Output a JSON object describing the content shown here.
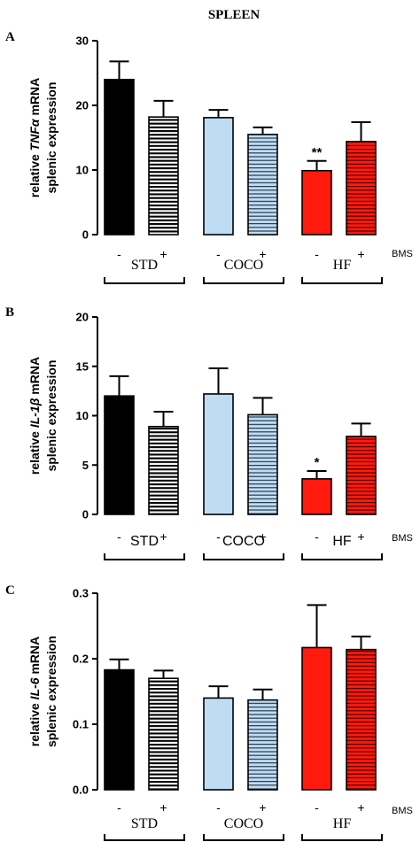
{
  "figure_title": "SPLEEN",
  "colors": {
    "black": "#000000",
    "light_blue": "#bfdcf5",
    "red": "#ff1a0d"
  },
  "chart_data": [
    {
      "type": "bar",
      "panel": "A",
      "ylabel_lines": [
        {
          "parts": [
            {
              "text": "relative "
            },
            {
              "text": "TNFα",
              "italic": true
            },
            {
              "text": " mRNA"
            }
          ]
        },
        {
          "parts": [
            {
              "text": "splenic expression"
            }
          ]
        }
      ],
      "ylim": [
        0,
        30
      ],
      "yticks": [
        "0",
        "10",
        "20",
        "30"
      ],
      "categories": [
        "STD -",
        "STD +",
        "COCO -",
        "COCO +",
        "HF -",
        "HF +"
      ],
      "values": [
        24.0,
        18.2,
        18.1,
        15.5,
        9.9,
        14.4
      ],
      "errors": [
        2.8,
        2.5,
        1.2,
        1.1,
        1.5,
        3.0
      ],
      "bar_styles": [
        "solid-black",
        "striped-black",
        "solid-blue",
        "striped-blue",
        "solid-red",
        "striped-red"
      ],
      "annotations": [
        {
          "bar": 4,
          "text": "**"
        }
      ],
      "bms_labels": [
        "-",
        "+",
        "-",
        "+",
        "-",
        "+"
      ],
      "bms_caption": "BMS",
      "groups": [
        "STD",
        "COCO",
        "HF"
      ]
    },
    {
      "type": "bar",
      "panel": "B",
      "ylabel_lines": [
        {
          "parts": [
            {
              "text": "relative "
            },
            {
              "text": "IL-1β",
              "italic": true
            },
            {
              "text": " mRNA"
            }
          ]
        },
        {
          "parts": [
            {
              "text": "splenic expression"
            }
          ]
        }
      ],
      "ylim": [
        0,
        20
      ],
      "yticks": [
        "0",
        "5",
        "10",
        "15",
        "20"
      ],
      "categories": [
        "STD -",
        "STD +",
        "COCO -",
        "COCO +",
        "HF -",
        "HF +"
      ],
      "values": [
        12.0,
        8.9,
        12.2,
        10.1,
        3.6,
        7.9
      ],
      "errors": [
        2.0,
        1.5,
        2.6,
        1.7,
        0.8,
        1.3
      ],
      "bar_styles": [
        "solid-black",
        "striped-black",
        "solid-blue",
        "striped-blue",
        "solid-red",
        "striped-red"
      ],
      "annotations": [
        {
          "bar": 4,
          "text": "*"
        }
      ],
      "bms_labels": [
        "-",
        "+",
        "-",
        "+",
        "-",
        "+"
      ],
      "bms_caption": "BMS",
      "groups": [
        "STD",
        "COCO",
        "HF"
      ]
    },
    {
      "type": "bar",
      "panel": "C",
      "ylabel_lines": [
        {
          "parts": [
            {
              "text": "relative "
            },
            {
              "text": "IL-6",
              "italic": true
            },
            {
              "text": " mRNA"
            }
          ]
        },
        {
          "parts": [
            {
              "text": "splenic expression"
            }
          ]
        }
      ],
      "ylim": [
        0,
        0.3
      ],
      "yticks": [
        "0.0",
        "0.1",
        "0.2",
        "0.3"
      ],
      "categories": [
        "STD -",
        "STD +",
        "COCO -",
        "COCO +",
        "HF -",
        "HF +"
      ],
      "values": [
        0.183,
        0.17,
        0.14,
        0.137,
        0.217,
        0.214
      ],
      "errors": [
        0.016,
        0.012,
        0.018,
        0.016,
        0.065,
        0.02
      ],
      "bar_styles": [
        "solid-black",
        "striped-black",
        "solid-blue",
        "striped-blue",
        "solid-red",
        "striped-red"
      ],
      "annotations": [],
      "bms_labels": [
        "-",
        "+",
        "-",
        "+",
        "-",
        "+"
      ],
      "bms_caption": "BMS",
      "groups": [
        "STD",
        "COCO",
        "HF"
      ]
    }
  ]
}
